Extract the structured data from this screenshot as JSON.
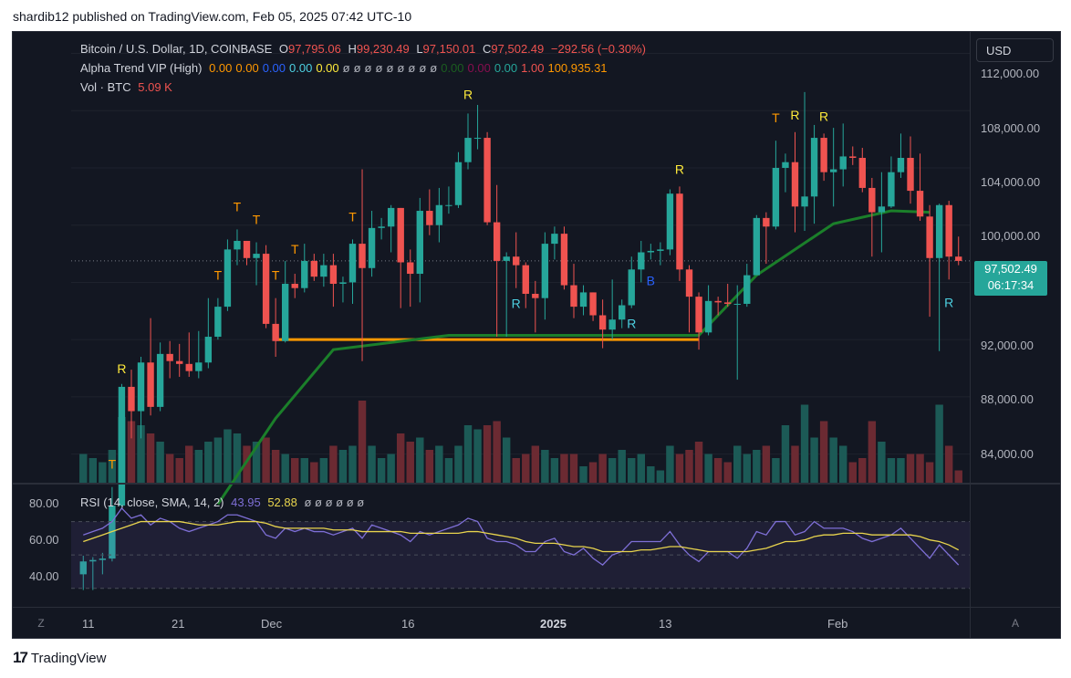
{
  "header": {
    "publish_line": "shardib12 published on TradingView.com, Feb 05, 2025 07:42 UTC-10"
  },
  "footer": {
    "brand": "TradingView",
    "logo_glyph": "17"
  },
  "main_legend": {
    "symbol": "Bitcoin / U.S. Dollar, 1D, COINBASE",
    "open_label": "O",
    "open": "97,795.06",
    "high_label": "H",
    "high": "99,230.49",
    "low_label": "L",
    "low": "97,150.01",
    "close_label": "C",
    "close": "97,502.49",
    "change": "−292.56 (−0.30%)"
  },
  "alpha_legend": {
    "name": "Alpha Trend VIP (High)",
    "values": [
      "0.00",
      "0.00",
      "0.00",
      "0.00",
      "0.00",
      "ø",
      "ø",
      "ø",
      "ø",
      "ø",
      "ø",
      "ø",
      "ø",
      "ø",
      "0.00",
      "0.00",
      "0.00",
      "1.00",
      "100,935.31"
    ],
    "colors": [
      "#ff9800",
      "#ff9800",
      "#2962ff",
      "#4dd0e1",
      "#ffeb3b",
      "#b2b5be",
      "#b2b5be",
      "#b2b5be",
      "#b2b5be",
      "#b2b5be",
      "#b2b5be",
      "#b2b5be",
      "#b2b5be",
      "#b2b5be",
      "#1b5e20",
      "#880e4f",
      "#26a69a",
      "#ef5350",
      "#ff9800"
    ]
  },
  "vol_legend": {
    "name": "Vol · BTC",
    "value": "5.09 K"
  },
  "rsi_legend": {
    "name": "RSI (14, close, SMA, 14, 2)",
    "rsi": "43.95",
    "sma": "52.88",
    "extras": "ø ø ø ø ø ø"
  },
  "price_axis": {
    "currency": "USD",
    "ticks": [
      "112,000.00",
      "108,000.00",
      "104,000.00",
      "100,000.00",
      "92,000.00",
      "88,000.00",
      "84,000.00"
    ],
    "last_price": "97,502.49",
    "countdown": "06:17:34"
  },
  "rsi_axis": {
    "ticks": [
      "80.00",
      "60.00",
      "40.00"
    ]
  },
  "time_axis": {
    "ticks": [
      "11",
      "21",
      "Dec",
      "16",
      "2025",
      "13",
      "Feb"
    ],
    "bold_tick": "2025"
  },
  "corners": {
    "left": "Z",
    "right": "A"
  },
  "signals": [
    "T",
    "R",
    "T",
    "T",
    "T",
    "T",
    "T",
    "T",
    "R",
    "R",
    "R",
    "B",
    "R",
    "T",
    "R",
    "R",
    "R"
  ],
  "colors": {
    "up": "#26a69a",
    "down": "#ef5350",
    "trend_line": "#1b7f2a",
    "support": "#ff9800",
    "rsi_line": "#7e6fd6",
    "rsi_sma": "#e8d44d",
    "volume_up": "#1c5a56",
    "volume_down": "#6b2a32"
  },
  "chart_data": {
    "type": "candlestick",
    "title": "Bitcoin / U.S. Dollar, 1D, COINBASE",
    "x": [
      "Nov 06",
      "Nov 07",
      "Nov 08",
      "Nov 09",
      "Nov 10",
      "Nov 11",
      "Nov 12",
      "Nov 13",
      "Nov 14",
      "Nov 15",
      "Nov 16",
      "Nov 17",
      "Nov 18",
      "Nov 19",
      "Nov 20",
      "Nov 21",
      "Nov 22",
      "Nov 23",
      "Nov 24",
      "Nov 25",
      "Nov 26",
      "Nov 27",
      "Nov 28",
      "Nov 29",
      "Nov 30",
      "Dec 01",
      "Dec 02",
      "Dec 03",
      "Dec 04",
      "Dec 05",
      "Dec 06",
      "Dec 07",
      "Dec 08",
      "Dec 09",
      "Dec 10",
      "Dec 11",
      "Dec 12",
      "Dec 13",
      "Dec 14",
      "Dec 15",
      "Dec 16",
      "Dec 17",
      "Dec 18",
      "Dec 19",
      "Dec 20",
      "Dec 21",
      "Dec 22",
      "Dec 23",
      "Dec 24",
      "Dec 25",
      "Dec 26",
      "Dec 27",
      "Dec 28",
      "Dec 29",
      "Dec 30",
      "Dec 31",
      "Jan 01",
      "Jan 02",
      "Jan 03",
      "Jan 04",
      "Jan 05",
      "Jan 06",
      "Jan 07",
      "Jan 08",
      "Jan 09",
      "Jan 10",
      "Jan 11",
      "Jan 12",
      "Jan 13",
      "Jan 14",
      "Jan 15",
      "Jan 16",
      "Jan 17",
      "Jan 18",
      "Jan 19",
      "Jan 20",
      "Jan 21",
      "Jan 22",
      "Jan 23",
      "Jan 24",
      "Jan 25",
      "Jan 26",
      "Jan 27",
      "Jan 28",
      "Jan 29",
      "Jan 30",
      "Jan 31",
      "Feb 01",
      "Feb 02",
      "Feb 03",
      "Feb 04",
      "Feb 05"
    ],
    "open": [
      75600,
      76500,
      76600,
      76700,
      80400,
      88700,
      87000,
      90400,
      87300,
      91000,
      90500,
      90300,
      89800,
      90400,
      92200,
      94300,
      98300,
      98900,
      97700,
      98000,
      93100,
      91900,
      95900,
      95600,
      97500,
      96400,
      97200,
      95900,
      96000,
      98700,
      97000,
      99800,
      99900,
      101200,
      97400,
      96600,
      101000,
      100000,
      101400,
      101400,
      104400,
      106100,
      106100,
      100200,
      97500,
      97800,
      97200,
      95200,
      94900,
      98700,
      99400,
      95800,
      94300,
      95300,
      93700,
      92700,
      93400,
      94400,
      96900,
      98100,
      98200,
      98300,
      102200,
      96900,
      95000,
      92500,
      94700,
      94600,
      94500,
      94500,
      96500,
      100500,
      99900,
      104000,
      104400,
      101300,
      102000,
      106100,
      103700,
      103900,
      104800,
      104700,
      102600,
      100900,
      101300,
      103700,
      104700,
      102400,
      100600,
      97700,
      101400,
      97800
    ],
    "high": [
      76900,
      76800,
      77100,
      81700,
      88900,
      89900,
      90800,
      93500,
      91800,
      91900,
      91700,
      92500,
      92600,
      94900,
      94900,
      99000,
      99700,
      98900,
      98800,
      98600,
      94900,
      97500,
      96600,
      98700,
      98000,
      98000,
      98000,
      96400,
      99000,
      103900,
      101000,
      100500,
      101400,
      101200,
      98300,
      101900,
      102500,
      102600,
      102700,
      105100,
      107800,
      108400,
      106500,
      102800,
      98100,
      99500,
      97400,
      96100,
      99500,
      99900,
      99900,
      97300,
      95800,
      95300,
      94800,
      96200,
      94800,
      97800,
      98900,
      98700,
      98800,
      102500,
      102700,
      97200,
      95300,
      95800,
      95000,
      95900,
      95800,
      97300,
      100700,
      100900,
      105900,
      105000,
      106500,
      109300,
      107000,
      106400,
      106800,
      107100,
      105500,
      105400,
      103300,
      103700,
      104800,
      106400,
      106200,
      105000,
      101400,
      101500,
      101700,
      99200
    ],
    "low": [
      74500,
      74500,
      75600,
      76500,
      80300,
      85100,
      85100,
      86700,
      87000,
      89300,
      89400,
      89400,
      89300,
      90000,
      92000,
      94000,
      97200,
      97200,
      95800,
      92800,
      90800,
      91800,
      94900,
      95300,
      96100,
      95700,
      94300,
      94600,
      94500,
      90500,
      96400,
      99000,
      98100,
      94200,
      94300,
      94600,
      99300,
      98800,
      100800,
      101200,
      103900,
      105300,
      100000,
      92200,
      92200,
      95600,
      94200,
      92500,
      93400,
      97600,
      95500,
      93500,
      93700,
      93300,
      91400,
      92000,
      92800,
      94200,
      96000,
      97600,
      97200,
      97900,
      96100,
      92500,
      91300,
      92300,
      93700,
      94300,
      89200,
      94300,
      96500,
      97300,
      99700,
      102300,
      99500,
      99600,
      100100,
      103100,
      101300,
      102700,
      104200,
      102300,
      97800,
      98100,
      101200,
      103300,
      101500,
      100300,
      93600,
      91200,
      96200,
      97200
    ],
    "close": [
      76500,
      76600,
      76700,
      80400,
      88700,
      87000,
      90400,
      87300,
      91000,
      90500,
      90300,
      89800,
      90400,
      92200,
      94300,
      98300,
      98900,
      97700,
      98000,
      93100,
      91900,
      95900,
      95600,
      97500,
      96400,
      97200,
      95900,
      96000,
      98700,
      97000,
      99800,
      99900,
      101200,
      97400,
      96600,
      101000,
      100000,
      101400,
      101400,
      104400,
      106100,
      106100,
      100200,
      97500,
      97800,
      97200,
      95200,
      94900,
      98700,
      99400,
      95800,
      94300,
      95300,
      93700,
      92700,
      93400,
      94400,
      96900,
      98100,
      98200,
      98300,
      102200,
      96900,
      95000,
      92500,
      94700,
      94600,
      94500,
      94500,
      96500,
      100500,
      99900,
      104000,
      104400,
      101300,
      102000,
      106100,
      103700,
      103900,
      104800,
      104700,
      102600,
      100900,
      101300,
      103700,
      104700,
      102400,
      100600,
      97700,
      101400,
      97800,
      97500
    ],
    "volume_relative": [
      0.35,
      0.3,
      0.25,
      0.4,
      0.8,
      0.75,
      0.7,
      0.6,
      0.5,
      0.35,
      0.3,
      0.45,
      0.4,
      0.5,
      0.55,
      0.65,
      0.6,
      0.45,
      0.5,
      0.55,
      0.4,
      0.35,
      0.3,
      0.3,
      0.25,
      0.3,
      0.45,
      0.4,
      0.45,
      1.0,
      0.45,
      0.3,
      0.35,
      0.6,
      0.5,
      0.55,
      0.4,
      0.45,
      0.3,
      0.45,
      0.7,
      0.65,
      0.7,
      0.75,
      0.55,
      0.3,
      0.35,
      0.45,
      0.4,
      0.3,
      0.35,
      0.35,
      0.2,
      0.25,
      0.35,
      0.3,
      0.4,
      0.3,
      0.35,
      0.2,
      0.15,
      0.45,
      0.35,
      0.4,
      0.5,
      0.35,
      0.3,
      0.25,
      0.45,
      0.35,
      0.4,
      0.45,
      0.3,
      0.7,
      0.45,
      0.95,
      0.55,
      0.75,
      0.55,
      0.45,
      0.25,
      0.3,
      0.75,
      0.5,
      0.3,
      0.3,
      0.35,
      0.35,
      0.25,
      0.95,
      0.45,
      0.15
    ],
    "ylim": [
      82000,
      113500
    ],
    "trend_line_points": [
      [
        14,
        80500
      ],
      [
        20,
        86500
      ],
      [
        26,
        91300
      ],
      [
        38,
        92300
      ],
      [
        56,
        92300
      ],
      [
        64,
        92300
      ],
      [
        70,
        96500
      ],
      [
        78,
        100100
      ],
      [
        84,
        101000
      ],
      [
        88,
        100900
      ]
    ],
    "support_line": {
      "from_index": 20,
      "to_index": 64,
      "value": 92000
    },
    "rsi_series": [
      62,
      64,
      66,
      70,
      78,
      72,
      74,
      68,
      72,
      70,
      66,
      64,
      66,
      68,
      70,
      74,
      74,
      72,
      70,
      62,
      60,
      66,
      64,
      66,
      64,
      64,
      62,
      64,
      66,
      60,
      68,
      66,
      64,
      62,
      58,
      64,
      62,
      64,
      66,
      68,
      72,
      70,
      60,
      58,
      58,
      56,
      52,
      52,
      58,
      60,
      52,
      50,
      54,
      48,
      44,
      50,
      52,
      58,
      58,
      58,
      58,
      64,
      56,
      50,
      46,
      52,
      52,
      52,
      48,
      54,
      64,
      62,
      70,
      70,
      62,
      64,
      70,
      66,
      66,
      66,
      64,
      60,
      58,
      60,
      62,
      66,
      60,
      54,
      48,
      56,
      50,
      44
    ],
    "rsi_sma_series": [
      58,
      60,
      62,
      64,
      66,
      68,
      70,
      70,
      70,
      70,
      70,
      69,
      68,
      68,
      68,
      69,
      70,
      70,
      70,
      69,
      67,
      66,
      66,
      66,
      66,
      66,
      65,
      65,
      65,
      64,
      64,
      64,
      64,
      64,
      63,
      63,
      63,
      63,
      63,
      63,
      64,
      64,
      63,
      62,
      61,
      60,
      58,
      57,
      57,
      57,
      56,
      55,
      55,
      54,
      52,
      52,
      52,
      52,
      53,
      53,
      54,
      55,
      55,
      54,
      53,
      52,
      52,
      52,
      52,
      52,
      53,
      54,
      56,
      58,
      58,
      59,
      61,
      62,
      62,
      63,
      63,
      63,
      62,
      62,
      62,
      62,
      62,
      61,
      59,
      58,
      56,
      53
    ],
    "rsi_ylim": [
      20,
      90
    ],
    "rsi_bands": [
      70,
      50,
      30
    ]
  }
}
